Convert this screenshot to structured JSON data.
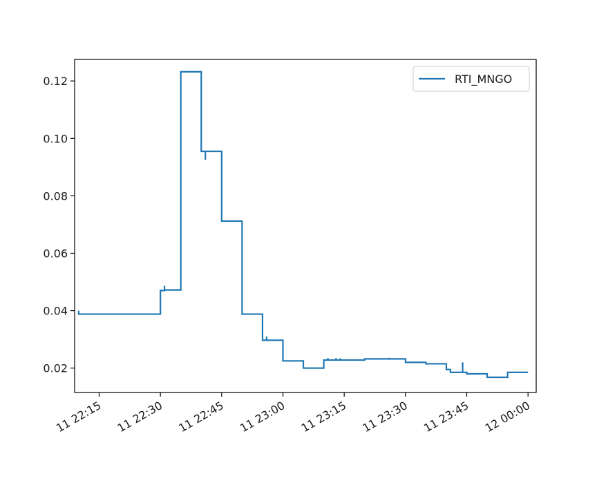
{
  "chart_data": {
    "type": "line",
    "title": "",
    "xlabel": "",
    "ylabel": "",
    "x_unit": "minutes",
    "xlim": [
      "11 22:09",
      "12 00:02"
    ],
    "ylim": [
      0.0115,
      0.1275
    ],
    "x_ticks": [
      {
        "label": "11 22:15",
        "value": "11 22:15"
      },
      {
        "label": "11 22:30",
        "value": "11 22:30"
      },
      {
        "label": "11 22:45",
        "value": "11 22:45"
      },
      {
        "label": "11 23:00",
        "value": "11 23:00"
      },
      {
        "label": "11 23:15",
        "value": "11 23:15"
      },
      {
        "label": "11 23:30",
        "value": "11 23:30"
      },
      {
        "label": "11 23:45",
        "value": "11 23:45"
      },
      {
        "label": "12 00:00",
        "value": "12 00:00"
      }
    ],
    "y_ticks": [
      {
        "label": "0.02",
        "value": 0.02
      },
      {
        "label": "0.04",
        "value": 0.04
      },
      {
        "label": "0.06",
        "value": 0.06
      },
      {
        "label": "0.08",
        "value": 0.08
      },
      {
        "label": "0.10",
        "value": 0.1
      },
      {
        "label": "0.12",
        "value": 0.12
      }
    ],
    "grid": false,
    "legend_position": "top-right",
    "series": [
      {
        "name": "RTI_MNGO",
        "color": "#1f77b4",
        "points": [
          [
            "11 22:10",
            0.04
          ],
          [
            "11 22:10",
            0.0388
          ],
          [
            "11 22:30",
            0.0388
          ],
          [
            "11 22:30",
            0.047
          ],
          [
            "11 22:31",
            0.047
          ],
          [
            "11 22:31",
            0.0487
          ],
          [
            "11 22:31",
            0.0472
          ],
          [
            "11 22:35",
            0.0472
          ],
          [
            "11 22:35",
            0.1232
          ],
          [
            "11 22:40",
            0.1232
          ],
          [
            "11 22:40",
            0.0955
          ],
          [
            "11 22:41",
            0.0955
          ],
          [
            "11 22:41",
            0.0925
          ],
          [
            "11 22:41",
            0.0955
          ],
          [
            "11 22:45",
            0.0955
          ],
          [
            "11 22:45",
            0.0712
          ],
          [
            "11 22:50",
            0.0712
          ],
          [
            "11 22:50",
            0.0388
          ],
          [
            "11 22:55",
            0.0388
          ],
          [
            "11 22:55",
            0.0297
          ],
          [
            "11 22:56",
            0.0297
          ],
          [
            "11 22:56",
            0.031
          ],
          [
            "11 22:56",
            0.0297
          ],
          [
            "11 23:00",
            0.0297
          ],
          [
            "11 23:00",
            0.0225
          ],
          [
            "11 23:05",
            0.0225
          ],
          [
            "11 23:05",
            0.02
          ],
          [
            "11 23:10",
            0.02
          ],
          [
            "11 23:10",
            0.0228
          ],
          [
            "11 23:11",
            0.0228
          ],
          [
            "11 23:11",
            0.0235
          ],
          [
            "11 23:11",
            0.0228
          ],
          [
            "11 23:13",
            0.0228
          ],
          [
            "11 23:13",
            0.0235
          ],
          [
            "11 23:13",
            0.0228
          ],
          [
            "11 23:14",
            0.0228
          ],
          [
            "11 23:14",
            0.0234
          ],
          [
            "11 23:14",
            0.0228
          ],
          [
            "11 23:20",
            0.0228
          ],
          [
            "11 23:20",
            0.0232
          ],
          [
            "11 23:26",
            0.0232
          ],
          [
            "11 23:26",
            0.0236
          ],
          [
            "11 23:26",
            0.0232
          ],
          [
            "11 23:30",
            0.0232
          ],
          [
            "11 23:30",
            0.022
          ],
          [
            "11 23:35",
            0.022
          ],
          [
            "11 23:35",
            0.0215
          ],
          [
            "11 23:40",
            0.0215
          ],
          [
            "11 23:40",
            0.0195
          ],
          [
            "11 23:41",
            0.0195
          ],
          [
            "11 23:41",
            0.0185
          ],
          [
            "11 23:44",
            0.0185
          ],
          [
            "11 23:44",
            0.022
          ],
          [
            "11 23:44",
            0.0185
          ],
          [
            "11 23:45",
            0.0185
          ],
          [
            "11 23:45",
            0.018
          ],
          [
            "11 23:50",
            0.018
          ],
          [
            "11 23:50",
            0.0168
          ],
          [
            "11 23:55",
            0.0168
          ],
          [
            "11 23:55",
            0.0185
          ],
          [
            "12 00:00",
            0.0185
          ]
        ]
      }
    ]
  }
}
